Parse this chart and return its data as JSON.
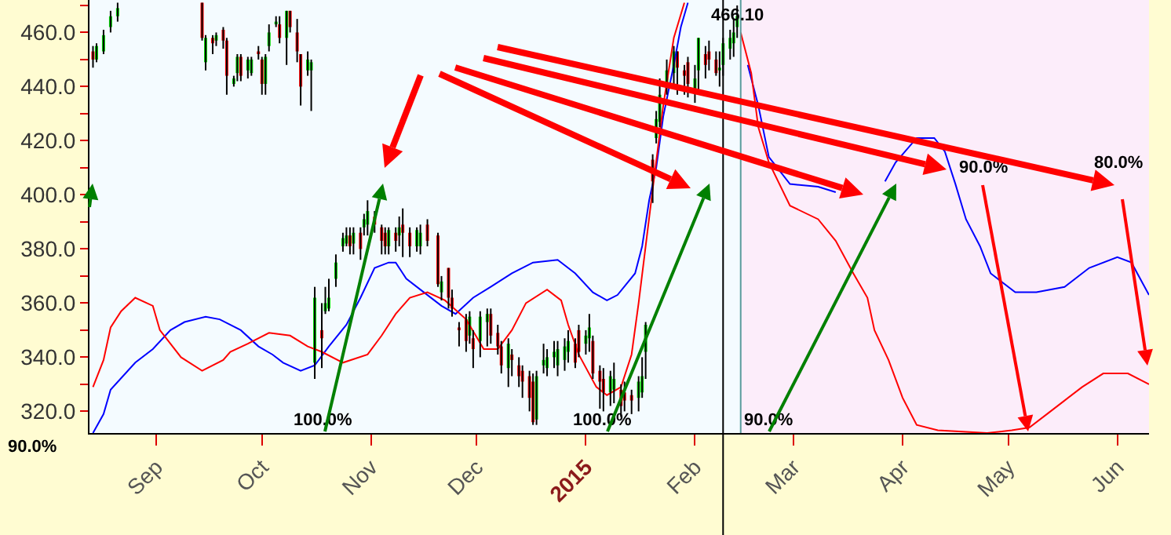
{
  "chart_data": {
    "type": "candlestick",
    "x": [
      "2014-08-14",
      "2014-08-15",
      "2014-08-17",
      "2014-08-19",
      "2014-08-21",
      "2014-09-14",
      "2014-09-15",
      "2014-09-17",
      "2014-09-18",
      "2014-09-20",
      "2014-09-21",
      "2014-09-23",
      "2014-09-24",
      "2014-09-25",
      "2014-09-27",
      "2014-09-28",
      "2014-09-30",
      "2014-10-01",
      "2014-10-02",
      "2014-10-03",
      "2014-10-05",
      "2014-10-06",
      "2014-10-08",
      "2014-10-09",
      "2014-10-11",
      "2014-10-12",
      "2014-10-14",
      "2014-10-15",
      "2014-10-16",
      "2014-10-18",
      "2014-10-19",
      "2014-10-20",
      "2014-10-22",
      "2014-10-24",
      "2014-10-25",
      "2014-10-26",
      "2014-10-27",
      "2014-10-29",
      "2014-10-30",
      "2014-10-31",
      "2014-11-02",
      "2014-11-04",
      "2014-11-05",
      "2014-11-06",
      "2014-11-08",
      "2014-11-09",
      "2014-11-10",
      "2014-11-12",
      "2014-11-14",
      "2014-11-15",
      "2014-11-17",
      "2014-11-20",
      "2014-11-21",
      "2014-11-23",
      "2014-11-24",
      "2014-11-26",
      "2014-11-28",
      "2014-11-29",
      "2014-11-30",
      "2014-12-02",
      "2014-12-04",
      "2014-12-05",
      "2014-12-07",
      "2014-12-08",
      "2014-12-10",
      "2014-12-11",
      "2014-12-13",
      "2014-12-14",
      "2014-12-16",
      "2014-12-17",
      "2014-12-18",
      "2014-12-20",
      "2014-12-21",
      "2014-12-23",
      "2014-12-24",
      "2014-12-26",
      "2014-12-27",
      "2014-12-29",
      "2014-12-30",
      "2015-01-01",
      "2015-01-02",
      "2015-01-03",
      "2015-01-05",
      "2015-01-06",
      "2015-01-08",
      "2015-01-09",
      "2015-01-11",
      "2015-01-12",
      "2015-01-14",
      "2015-01-16",
      "2015-01-17",
      "2015-01-18",
      "2015-01-20",
      "2015-01-21",
      "2015-01-22",
      "2015-01-24",
      "2015-01-26",
      "2015-01-27",
      "2015-01-29",
      "2015-01-30",
      "2015-02-01",
      "2015-02-02",
      "2015-02-04",
      "2015-02-05",
      "2015-02-07",
      "2015-02-08",
      "2015-02-09",
      "2015-02-11",
      "2015-02-12",
      "2015-02-13"
    ],
    "ohlc": [
      [
        453,
        455,
        447,
        450
      ],
      [
        450,
        456,
        449,
        455
      ],
      [
        453,
        461,
        452,
        459
      ],
      [
        462,
        468,
        460,
        466
      ],
      [
        466,
        471,
        464,
        469
      ],
      [
        471,
        471,
        457,
        458
      ],
      [
        449,
        459,
        446,
        458
      ],
      [
        458,
        459,
        452,
        456
      ],
      [
        457,
        460,
        455,
        459
      ],
      [
        461,
        462,
        454,
        457
      ],
      [
        457,
        458,
        437,
        444
      ],
      [
        441,
        444,
        440,
        443
      ],
      [
        445,
        452,
        442,
        451
      ],
      [
        451,
        452,
        442,
        444
      ],
      [
        446,
        451,
        443,
        450
      ],
      [
        445,
        451,
        444,
        450
      ],
      [
        453,
        455,
        450,
        452
      ],
      [
        450,
        451,
        437,
        441
      ],
      [
        441,
        452,
        437,
        451
      ],
      [
        455,
        463,
        453,
        460
      ],
      [
        463,
        466,
        462,
        464
      ],
      [
        463,
        466,
        456,
        458
      ],
      [
        458,
        468,
        448,
        468
      ],
      [
        468,
        468,
        460,
        462
      ],
      [
        460,
        465,
        449,
        453
      ],
      [
        452,
        452,
        433,
        440
      ],
      [
        446,
        453,
        444,
        450
      ],
      [
        446,
        450,
        431,
        449
      ],
      [
        338,
        366,
        332,
        362
      ],
      [
        350,
        360,
        336,
        347
      ],
      [
        357,
        366,
        356,
        360
      ],
      [
        358,
        369,
        357,
        362
      ],
      [
        369,
        378,
        366,
        375
      ],
      [
        381,
        386,
        379,
        384
      ],
      [
        382,
        388,
        381,
        385
      ],
      [
        385,
        388,
        378,
        381
      ],
      [
        382,
        388,
        378,
        386
      ],
      [
        386,
        388,
        376,
        380
      ],
      [
        388,
        393,
        385,
        391
      ],
      [
        389,
        398,
        385,
        394
      ],
      [
        392,
        394,
        386,
        389
      ],
      [
        388,
        389,
        378,
        383
      ],
      [
        386,
        388,
        378,
        381
      ],
      [
        381,
        388,
        378,
        387
      ],
      [
        386,
        388,
        379,
        383
      ],
      [
        385,
        392,
        381,
        388
      ],
      [
        389,
        395,
        377,
        386
      ],
      [
        386,
        388,
        377,
        381
      ],
      [
        381,
        388,
        379,
        387
      ],
      [
        381,
        389,
        378,
        386
      ],
      [
        389,
        391,
        381,
        383
      ],
      [
        385,
        386,
        366,
        367
      ],
      [
        364,
        370,
        361,
        368
      ],
      [
        373,
        373,
        358,
        362
      ],
      [
        362,
        365,
        355,
        358
      ],
      [
        351,
        353,
        344,
        350
      ],
      [
        354,
        356,
        342,
        346
      ],
      [
        348,
        357,
        345,
        355
      ],
      [
        347,
        350,
        336,
        343
      ],
      [
        346,
        357,
        340,
        355
      ],
      [
        353,
        358,
        344,
        356
      ],
      [
        356,
        358,
        345,
        348
      ],
      [
        349,
        352,
        341,
        344
      ],
      [
        344,
        346,
        334,
        337
      ],
      [
        336,
        347,
        329,
        345
      ],
      [
        341,
        343,
        333,
        339
      ],
      [
        337,
        340,
        329,
        333
      ],
      [
        335,
        337,
        325,
        331
      ],
      [
        333,
        335,
        320,
        325
      ],
      [
        331,
        334,
        315,
        316
      ],
      [
        317,
        335,
        315,
        333
      ],
      [
        337,
        345,
        334,
        339
      ],
      [
        336,
        343,
        333,
        340
      ],
      [
        340,
        346,
        336,
        342
      ],
      [
        337,
        346,
        333,
        343
      ],
      [
        339,
        347,
        335,
        344
      ],
      [
        342,
        350,
        338,
        346
      ],
      [
        345,
        347,
        336,
        338
      ],
      [
        350,
        352,
        340,
        342
      ],
      [
        345,
        350,
        341,
        348
      ],
      [
        347,
        356,
        342,
        351
      ],
      [
        346,
        348,
        332,
        334
      ],
      [
        335,
        337,
        321,
        331
      ],
      [
        332,
        336,
        320,
        327
      ],
      [
        327,
        335,
        322,
        333
      ],
      [
        328,
        338,
        323,
        332
      ],
      [
        328,
        330,
        318,
        322
      ],
      [
        327,
        331,
        320,
        324
      ],
      [
        326,
        328,
        319,
        324
      ],
      [
        325,
        333,
        320,
        331
      ],
      [
        327,
        340,
        325,
        333
      ],
      [
        342,
        353,
        332,
        352
      ],
      [
        413,
        415,
        397,
        405
      ],
      [
        421,
        431,
        419,
        428
      ],
      [
        427,
        443,
        425,
        437
      ],
      [
        441,
        450,
        437,
        446
      ],
      [
        445,
        455,
        440,
        453
      ],
      [
        453,
        453,
        437,
        447
      ],
      [
        446,
        448,
        437,
        444
      ],
      [
        449,
        451,
        436,
        441
      ],
      [
        438,
        448,
        434,
        443
      ],
      [
        446,
        458,
        438,
        458
      ],
      [
        452,
        455,
        443,
        448
      ],
      [
        453,
        457,
        446,
        450
      ],
      [
        450,
        453,
        444,
        445
      ],
      [
        446,
        453,
        440,
        447
      ],
      [
        448,
        458,
        444,
        456
      ],
      [
        454,
        461,
        450,
        458
      ],
      [
        456,
        465,
        451,
        460
      ],
      [
        462,
        470,
        458,
        466.1
      ]
    ],
    "series": [
      {
        "type": "line",
        "color": "#0000ff",
        "x": [
          "2014-08-14",
          "2014-08-17",
          "2014-08-19",
          "2014-08-26",
          "2014-08-31",
          "2014-09-05",
          "2014-09-09",
          "2014-09-15",
          "2014-09-19",
          "2014-09-25",
          "2014-09-30",
          "2014-10-04",
          "2014-10-07",
          "2014-10-12",
          "2014-10-16",
          "2014-10-20",
          "2014-10-25",
          "2014-10-29",
          "2014-11-02",
          "2014-11-06",
          "2014-11-08",
          "2014-11-11",
          "2014-11-16",
          "2014-11-21",
          "2014-11-25",
          "2014-11-30",
          "2014-12-05",
          "2014-12-11",
          "2014-12-17",
          "2014-12-24",
          "2014-12-29",
          "2015-01-03",
          "2015-01-07",
          "2015-01-10",
          "2015-01-15",
          "2015-01-17",
          "2015-01-19",
          "2015-01-21",
          "2015-01-23",
          "2015-01-26",
          "2015-01-28",
          "2015-01-30",
          "2015-02-08",
          "2015-02-16",
          "2015-02-19",
          "2015-02-22",
          "2015-02-28",
          "2015-03-08",
          "2015-03-13",
          "2015-03-20",
          "2015-03-27",
          "2015-03-30",
          "2015-04-05",
          "2015-04-10",
          "2015-04-13",
          "2015-04-16",
          "2015-04-19",
          "2015-04-23",
          "2015-04-26",
          "2015-05-03",
          "2015-05-09",
          "2015-05-17",
          "2015-05-24",
          "2015-06-01",
          "2015-06-05",
          "2015-06-10"
        ],
        "values": [
          312,
          319,
          328,
          338,
          343,
          350,
          353,
          355,
          354,
          350,
          344,
          341,
          338,
          335,
          337,
          344,
          352,
          362,
          373,
          375,
          375,
          369,
          364,
          359,
          356,
          362,
          366,
          371,
          375,
          376,
          371,
          364,
          361,
          363,
          371,
          381,
          398,
          410,
          429,
          448,
          462,
          471,
          null,
          448,
          433,
          414,
          404,
          403,
          401,
          null,
          405,
          412,
          421,
          421,
          416,
          404,
          391,
          381,
          371,
          364,
          364,
          366,
          373,
          377,
          375,
          363
        ]
      },
      {
        "type": "line",
        "color": "#ff0000",
        "x": [
          "2014-08-14",
          "2014-08-17",
          "2014-08-19",
          "2014-08-22",
          "2014-08-26",
          "2014-08-31",
          "2014-09-02",
          "2014-09-08",
          "2014-09-14",
          "2014-09-20",
          "2014-09-22",
          "2014-09-27",
          "2014-10-03",
          "2014-10-09",
          "2014-10-14",
          "2014-10-18",
          "2014-10-24",
          "2014-10-31",
          "2014-11-04",
          "2014-11-06",
          "2014-11-08",
          "2014-11-12",
          "2014-11-17",
          "2014-11-22",
          "2014-11-28",
          "2014-12-03",
          "2014-12-07",
          "2014-12-11",
          "2014-12-15",
          "2014-12-21",
          "2014-12-25",
          "2014-12-27",
          "2014-12-30",
          "2015-01-04",
          "2015-01-07",
          "2015-01-11",
          "2015-01-14",
          "2015-01-16",
          "2015-01-20",
          "2015-01-23",
          "2015-01-26",
          "2015-01-29",
          "2015-02-08",
          "2015-02-14",
          "2015-02-17",
          "2015-02-19",
          "2015-02-22",
          "2015-02-28",
          "2015-03-08",
          "2015-03-13",
          "2015-03-18",
          "2015-03-22",
          "2015-03-24",
          "2015-03-28",
          "2015-04-01",
          "2015-04-05",
          "2015-04-11",
          "2015-04-25",
          "2015-05-02",
          "2015-05-07",
          "2015-05-12",
          "2015-05-17",
          "2015-05-22",
          "2015-05-28",
          "2015-06-04",
          "2015-06-10"
        ],
        "values": [
          329,
          339,
          351,
          357,
          362,
          359,
          350,
          340,
          335,
          339,
          342,
          345,
          349,
          348,
          344,
          342,
          338,
          341,
          348,
          352,
          356,
          362,
          364,
          361,
          354,
          343,
          343,
          350,
          360,
          365,
          361,
          352,
          341,
          329,
          326,
          329,
          341,
          360,
          402,
          433,
          458,
          471,
          null,
          460,
          445,
          425,
          412,
          396,
          391,
          383,
          371,
          362,
          350,
          339,
          325,
          315,
          313,
          312,
          313,
          314,
          319,
          324,
          329,
          334,
          334,
          330
        ]
      }
    ],
    "xlim": [
      "2014-08-13",
      "2015-06-10"
    ],
    "ylim": [
      312,
      472
    ],
    "xticks": [
      {
        "value": "2014-09-01",
        "label": "Sep"
      },
      {
        "value": "2014-10-01",
        "label": "Oct"
      },
      {
        "value": "2014-11-01",
        "label": "Nov"
      },
      {
        "value": "2014-12-01",
        "label": "Dec"
      },
      {
        "value": "2015-01-01",
        "label": "2015"
      },
      {
        "value": "2015-02-01",
        "label": "Feb"
      },
      {
        "value": "2015-03-01",
        "label": "Mar"
      },
      {
        "value": "2015-04-01",
        "label": "Apr"
      },
      {
        "value": "2015-05-01",
        "label": "May"
      },
      {
        "value": "2015-06-01",
        "label": "Jun"
      }
    ],
    "yticks": [
      {
        "value": 320,
        "label": "320.0"
      },
      {
        "value": 330,
        "label": null
      },
      {
        "value": 340,
        "label": "340.0"
      },
      {
        "value": 350,
        "label": null
      },
      {
        "value": 360,
        "label": "360.0"
      },
      {
        "value": 370,
        "label": null
      },
      {
        "value": 380,
        "label": "380.0"
      },
      {
        "value": 390,
        "label": null
      },
      {
        "value": 400,
        "label": "400.0"
      },
      {
        "value": 410,
        "label": null
      },
      {
        "value": 420,
        "label": "420.0"
      },
      {
        "value": 430,
        "label": null
      },
      {
        "value": 440,
        "label": "440.0"
      },
      {
        "value": 450,
        "label": null
      },
      {
        "value": 460,
        "label": "460.0"
      },
      {
        "value": 470,
        "label": null
      }
    ],
    "bands": [
      {
        "axis": "x",
        "from": "2015-02-14",
        "to": "2015-06-10",
        "color": "#fcedfa"
      }
    ],
    "ref_lines": [
      {
        "axis": "x",
        "value": "2015-02-09",
        "color": "#000000"
      },
      {
        "axis": "x",
        "value": "2015-02-14",
        "color": "#5a9c9c"
      }
    ],
    "annotations": [
      {
        "text": "466.10",
        "x": "2015-02-13",
        "y": 466.1
      },
      "90.0%",
      "100.0%",
      "100.0%",
      "90.0%",
      "90.0%",
      "80.0%"
    ],
    "grid": false
  }
}
